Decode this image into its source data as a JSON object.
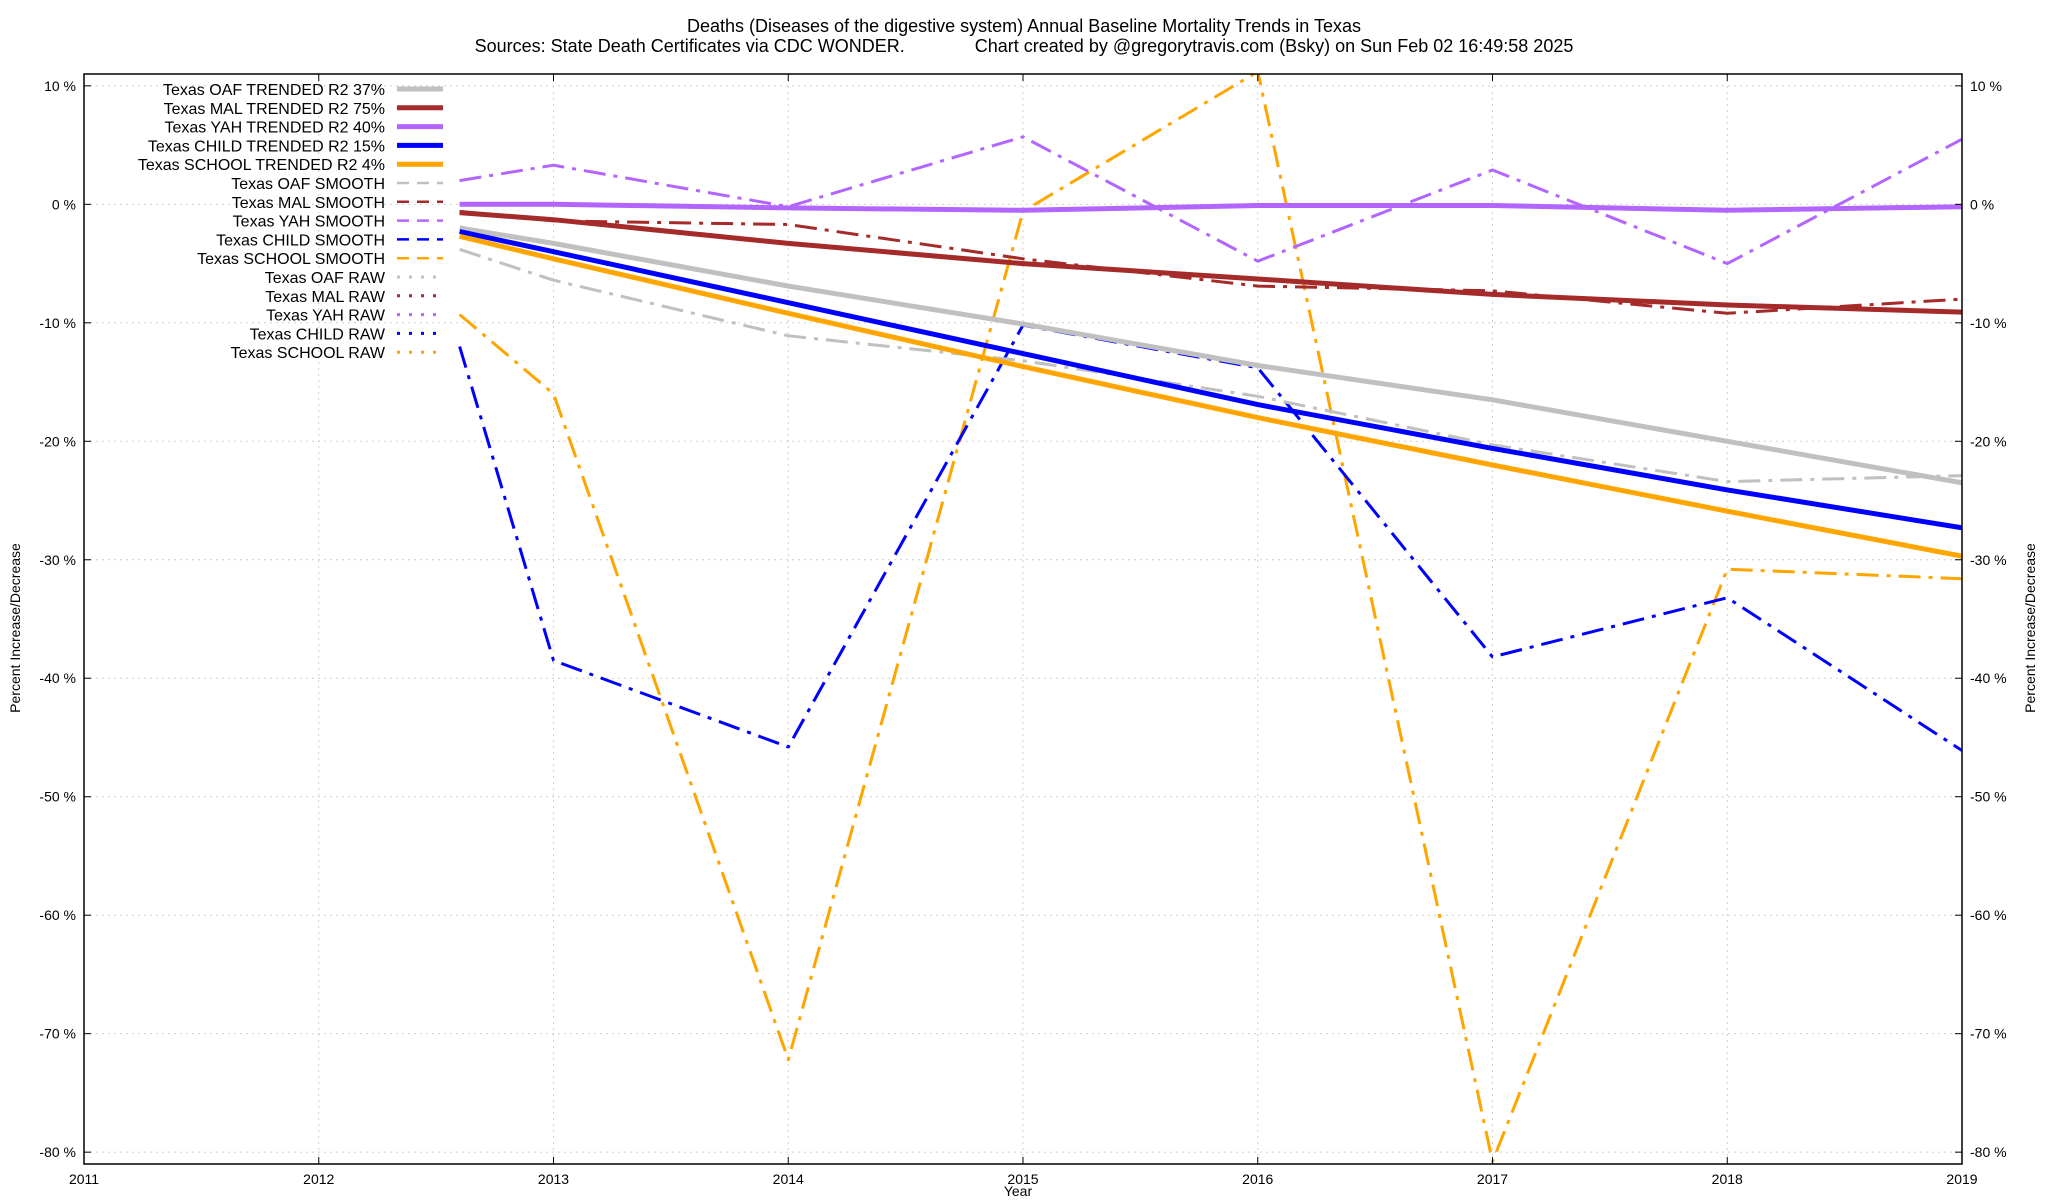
{
  "chart_data": {
    "type": "line",
    "title": "Deaths (Diseases of the digestive system)  Annual Baseline Mortality Trends in Texas",
    "subtitle": "Sources: State Death Certificates via CDC WONDER.              Chart created by @gregorytravis.com (Bsky) on Sun Feb 02 16:49:58 2025",
    "xlabel": "Year",
    "ylabel": "Percent Increase/Decrease",
    "y2label": "Percent Increase/Decrease",
    "xlim": [
      2011,
      2019
    ],
    "ylim": [
      -81,
      11
    ],
    "x_ticks": [
      "2011",
      "2012",
      "2013",
      "2014",
      "2015",
      "2016",
      "2017",
      "2018",
      "2019"
    ],
    "y_ticks": [
      "10 %",
      "0 %",
      "-10 %",
      "-20 %",
      "-30 %",
      "-40 %",
      "-50 %",
      "-60 %",
      "-70 %",
      "-80 %"
    ],
    "y_tick_values": [
      10,
      0,
      -10,
      -20,
      -30,
      -40,
      -50,
      -60,
      -70,
      -80
    ],
    "grid": true,
    "legend_position": "top-left",
    "series": [
      {
        "name": "Texas OAF TRENDED R2  37%",
        "style": "solid",
        "color": "#c0c0c0",
        "width": 5,
        "x": [
          2012.6,
          2013,
          2014,
          2015,
          2016,
          2017,
          2018,
          2019
        ],
        "y": [
          -2,
          -3.3,
          -6.9,
          -10.1,
          -13.6,
          -16.5,
          -20,
          -23.5
        ]
      },
      {
        "name": "Texas MAL TRENDED R2  75%",
        "style": "solid",
        "color": "#a52a2a",
        "width": 5,
        "x": [
          2012.6,
          2013,
          2014,
          2015,
          2016,
          2017,
          2018,
          2019
        ],
        "y": [
          -0.7,
          -1.3,
          -3.3,
          -5,
          -6.3,
          -7.6,
          -8.5,
          -9.1
        ]
      },
      {
        "name": "Texas YAH TRENDED R2  40%",
        "style": "solid",
        "color": "#b266ff",
        "width": 5,
        "x": [
          2012.6,
          2013,
          2014,
          2015,
          2016,
          2017,
          2018,
          2019
        ],
        "y": [
          0,
          0,
          -0.3,
          -0.5,
          -0.1,
          -0.1,
          -0.5,
          -0.2
        ]
      },
      {
        "name": "Texas CHILD TRENDED R2  15%",
        "style": "solid",
        "color": "#0000ff",
        "width": 5,
        "x": [
          2012.6,
          2013,
          2014,
          2015,
          2016,
          2017,
          2018,
          2019
        ],
        "y": [
          -2.3,
          -4,
          -8.3,
          -12.6,
          -16.9,
          -20.6,
          -24.1,
          -27.3
        ]
      },
      {
        "name": "Texas SCHOOL TRENDED R2  4%",
        "style": "solid",
        "color": "#ffa500",
        "width": 5,
        "x": [
          2012.6,
          2013,
          2014,
          2015,
          2016,
          2017,
          2018,
          2019
        ],
        "y": [
          -2.7,
          -4.6,
          -9.2,
          -13.7,
          -18,
          -22,
          -25.9,
          -29.7
        ]
      },
      {
        "name": "Texas OAF SMOOTH",
        "style": "dashdot",
        "color": "#c0c0c0",
        "width": 3,
        "x": [
          2012.6,
          2013,
          2014,
          2015,
          2016,
          2017,
          2018,
          2019
        ],
        "y": [
          -3.8,
          -6.4,
          -11.1,
          -13.2,
          -16.2,
          -20.3,
          -23.4,
          -22.9
        ]
      },
      {
        "name": "Texas MAL SMOOTH",
        "style": "dashdot",
        "color": "#a52a2a",
        "width": 3,
        "x": [
          2012.6,
          2013,
          2014,
          2015,
          2016,
          2017,
          2018,
          2019
        ],
        "y": [
          -0.6,
          -1.4,
          -1.7,
          -4.6,
          -6.9,
          -7.3,
          -9.2,
          -8
        ]
      },
      {
        "name": "Texas YAH SMOOTH",
        "style": "dashdot",
        "color": "#b266ff",
        "width": 3,
        "x": [
          2012.6,
          2013,
          2014,
          2015,
          2016,
          2017,
          2018,
          2019
        ],
        "y": [
          2,
          3.3,
          -0.2,
          5.7,
          -4.8,
          2.9,
          -5,
          5.5
        ]
      },
      {
        "name": "Texas CHILD SMOOTH",
        "style": "dashdot",
        "color": "#0000ff",
        "width": 3,
        "x": [
          2012.6,
          2013,
          2014,
          2015,
          2016,
          2017,
          2018,
          2019
        ],
        "y": [
          -12,
          -38.5,
          -45.8,
          -10.2,
          -13.8,
          -38.2,
          -33.2,
          -46.1
        ]
      },
      {
        "name": "Texas SCHOOL SMOOTH",
        "style": "dashdot",
        "color": "#ffa500",
        "width": 3,
        "x": [
          2012.6,
          2013,
          2014,
          2015,
          2016,
          2017,
          2018,
          2019
        ],
        "y": [
          -9.3,
          -16,
          -72.2,
          -0.6,
          11.2,
          -80.8,
          -30.8,
          -31.6
        ]
      },
      {
        "name": "Texas OAF RAW",
        "style": "dotted",
        "color": "#c0c0c0",
        "width": 2,
        "x": [],
        "y": []
      },
      {
        "name": "Texas MAL RAW",
        "style": "dotted",
        "color": "#a52a2a",
        "width": 2,
        "x": [],
        "y": []
      },
      {
        "name": "Texas YAH RAW",
        "style": "dotted",
        "color": "#b266ff",
        "width": 2,
        "x": [],
        "y": []
      },
      {
        "name": "Texas CHILD RAW",
        "style": "dotted",
        "color": "#0000ff",
        "width": 2,
        "x": [],
        "y": []
      },
      {
        "name": "Texas SCHOOL RAW",
        "style": "dotted",
        "color": "#ffa500",
        "width": 2,
        "x": [],
        "y": []
      }
    ]
  }
}
